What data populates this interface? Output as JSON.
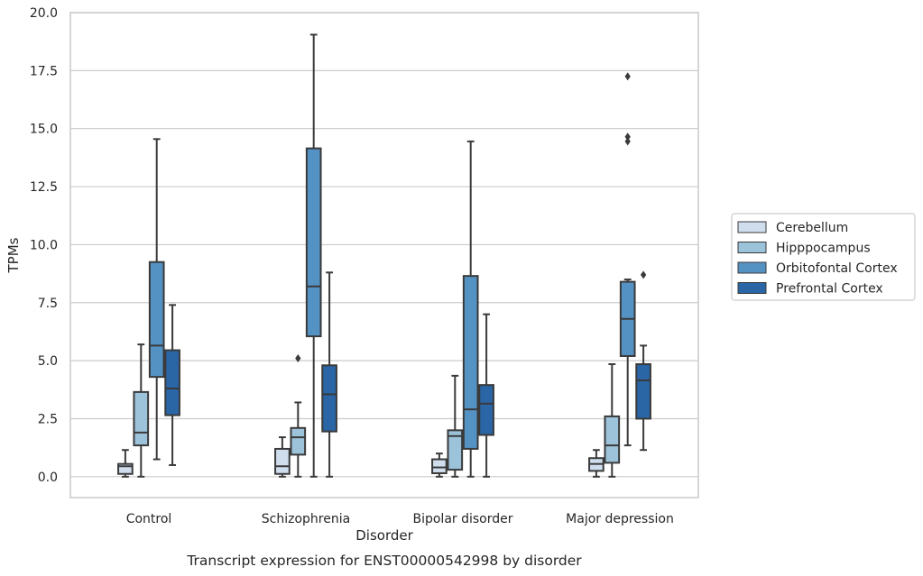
{
  "chart_data": {
    "type": "boxplot",
    "title": "",
    "caption": "Transcript expression for ENST00000542998 by disorder",
    "xlabel": "Disorder",
    "ylabel": "TPMs",
    "ylim": [
      -0.9,
      20.0
    ],
    "yticks": [
      "0.0",
      "2.5",
      "5.0",
      "7.5",
      "10.0",
      "12.5",
      "15.0",
      "17.5",
      "20.0"
    ],
    "grid": "horizontal",
    "legend_position": "right",
    "categories": [
      "Control",
      "Schizophrenia",
      "Bipolar disorder",
      "Major depression"
    ],
    "series": [
      {
        "name": "Cerebellum",
        "color": "#cfdded",
        "boxes": [
          {
            "whisker_low": 0.0,
            "q1": 0.12,
            "median": 0.45,
            "q3": 0.55,
            "whisker_high": 1.15,
            "outliers": []
          },
          {
            "whisker_low": 0.0,
            "q1": 0.12,
            "median": 0.45,
            "q3": 1.2,
            "whisker_high": 1.7,
            "outliers": []
          },
          {
            "whisker_low": 0.0,
            "q1": 0.15,
            "median": 0.4,
            "q3": 0.75,
            "whisker_high": 1.0,
            "outliers": []
          },
          {
            "whisker_low": 0.0,
            "q1": 0.25,
            "median": 0.55,
            "q3": 0.8,
            "whisker_high": 1.15,
            "outliers": []
          }
        ]
      },
      {
        "name": "Hipppocampus",
        "color": "#9dc3db",
        "boxes": [
          {
            "whisker_low": 0.0,
            "q1": 1.35,
            "median": 1.9,
            "q3": 3.65,
            "whisker_high": 5.7,
            "outliers": []
          },
          {
            "whisker_low": 0.0,
            "q1": 0.95,
            "median": 1.7,
            "q3": 2.1,
            "whisker_high": 3.2,
            "outliers": [
              5.1
            ]
          },
          {
            "whisker_low": 0.0,
            "q1": 0.3,
            "median": 1.75,
            "q3": 2.0,
            "whisker_high": 4.35,
            "outliers": []
          },
          {
            "whisker_low": 0.0,
            "q1": 0.6,
            "median": 1.35,
            "q3": 2.6,
            "whisker_high": 4.85,
            "outliers": []
          }
        ]
      },
      {
        "name": "Orbitofontal Cortex",
        "color": "#5592c4",
        "boxes": [
          {
            "whisker_low": 0.75,
            "q1": 4.3,
            "median": 5.65,
            "q3": 9.25,
            "whisker_high": 14.55,
            "outliers": []
          },
          {
            "whisker_low": 0.0,
            "q1": 6.05,
            "median": 8.2,
            "q3": 14.15,
            "whisker_high": 19.05,
            "outliers": []
          },
          {
            "whisker_low": 0.0,
            "q1": 1.2,
            "median": 2.9,
            "q3": 8.65,
            "whisker_high": 14.45,
            "outliers": []
          },
          {
            "whisker_low": 1.35,
            "q1": 5.2,
            "median": 6.8,
            "q3": 8.4,
            "whisker_high": 8.5,
            "outliers": [
              14.45,
              14.65,
              17.25
            ]
          }
        ]
      },
      {
        "name": "Prefrontal Cortex",
        "color": "#2a65a5",
        "boxes": [
          {
            "whisker_low": 0.5,
            "q1": 2.65,
            "median": 3.8,
            "q3": 5.45,
            "whisker_high": 7.4,
            "outliers": []
          },
          {
            "whisker_low": 0.0,
            "q1": 1.95,
            "median": 3.55,
            "q3": 4.8,
            "whisker_high": 8.8,
            "outliers": []
          },
          {
            "whisker_low": 0.0,
            "q1": 1.8,
            "median": 3.15,
            "q3": 3.95,
            "whisker_high": 7.0,
            "outliers": []
          },
          {
            "whisker_low": 1.15,
            "q1": 2.5,
            "median": 4.15,
            "q3": 4.85,
            "whisker_high": 5.65,
            "outliers": [
              8.7
            ]
          }
        ]
      }
    ]
  }
}
